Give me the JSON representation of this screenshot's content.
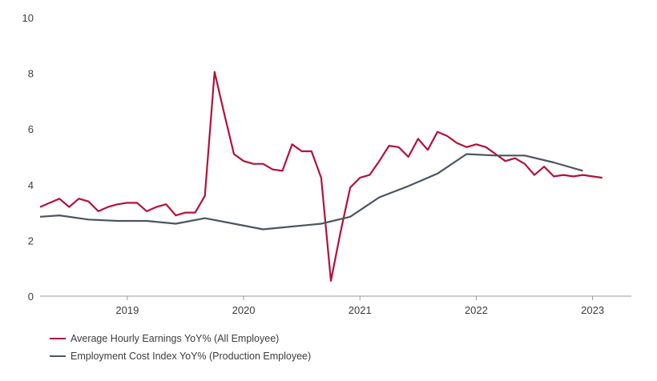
{
  "chart_data": {
    "type": "line",
    "title": "",
    "xlabel": "",
    "ylabel": "",
    "ylim": [
      0,
      10
    ],
    "yticks": [
      0,
      2,
      4,
      6,
      8,
      10
    ],
    "ytick_labels": [
      "0",
      "2",
      "4",
      "6",
      "8",
      "10"
    ],
    "xlim": [
      "2018-04",
      "2023-05"
    ],
    "xticks": [
      "2019-01",
      "2020-01",
      "2021-01",
      "2022-01",
      "2023-01"
    ],
    "xtick_labels": [
      "2019",
      "2020",
      "2021",
      "2022",
      "2023"
    ],
    "grid": false,
    "legend_position": "bottom-left",
    "series": [
      {
        "name": "Average Hourly Earnings YoY% (All Employee)",
        "color": "#b5103c",
        "points": [
          [
            "2018-04",
            3.2
          ],
          [
            "2018-05",
            3.35
          ],
          [
            "2018-06",
            3.5
          ],
          [
            "2018-07",
            3.2
          ],
          [
            "2018-08",
            3.5
          ],
          [
            "2018-09",
            3.4
          ],
          [
            "2018-10",
            3.05
          ],
          [
            "2018-11",
            3.2
          ],
          [
            "2018-12",
            3.3
          ],
          [
            "2019-01",
            3.35
          ],
          [
            "2019-02",
            3.35
          ],
          [
            "2019-03",
            3.05
          ],
          [
            "2019-04",
            3.2
          ],
          [
            "2019-05",
            3.3
          ],
          [
            "2019-06",
            2.9
          ],
          [
            "2019-07",
            3.0
          ],
          [
            "2019-08",
            3.0
          ],
          [
            "2019-09",
            3.6
          ],
          [
            "2019-10",
            8.05
          ],
          [
            "2019-11",
            6.55
          ],
          [
            "2019-12",
            5.1
          ],
          [
            "2020-01",
            4.85
          ],
          [
            "2020-02",
            4.75
          ],
          [
            "2020-03",
            4.75
          ],
          [
            "2020-04",
            4.55
          ],
          [
            "2020-05",
            4.5
          ],
          [
            "2020-06",
            5.45
          ],
          [
            "2020-07",
            5.2
          ],
          [
            "2020-08",
            5.2
          ],
          [
            "2020-09",
            4.25
          ],
          [
            "2020-10",
            0.55
          ],
          [
            "2020-11",
            2.3
          ],
          [
            "2020-12",
            3.9
          ],
          [
            "2021-01",
            4.25
          ],
          [
            "2021-02",
            4.35
          ],
          [
            "2021-03",
            4.85
          ],
          [
            "2021-04",
            5.4
          ],
          [
            "2021-05",
            5.35
          ],
          [
            "2021-06",
            5.0
          ],
          [
            "2021-07",
            5.65
          ],
          [
            "2021-08",
            5.25
          ],
          [
            "2021-09",
            5.9
          ],
          [
            "2021-10",
            5.75
          ],
          [
            "2021-11",
            5.5
          ],
          [
            "2021-12",
            5.35
          ],
          [
            "2022-01",
            5.45
          ],
          [
            "2022-02",
            5.35
          ],
          [
            "2022-03",
            5.1
          ],
          [
            "2022-04",
            4.85
          ],
          [
            "2022-05",
            4.95
          ],
          [
            "2022-06",
            4.75
          ],
          [
            "2022-07",
            4.35
          ],
          [
            "2022-08",
            4.65
          ],
          [
            "2022-09",
            4.3
          ],
          [
            "2022-10",
            4.35
          ],
          [
            "2022-11",
            4.3
          ],
          [
            "2022-12",
            4.35
          ],
          [
            "2023-01",
            4.3
          ],
          [
            "2023-02",
            4.25
          ]
        ]
      },
      {
        "name": "Employment Cost Index YoY% (Production Employee)",
        "color": "#4a5560",
        "points": [
          [
            "2018-04",
            2.85
          ],
          [
            "2018-06",
            2.9
          ],
          [
            "2018-09",
            2.75
          ],
          [
            "2018-12",
            2.7
          ],
          [
            "2019-03",
            2.7
          ],
          [
            "2019-06",
            2.6
          ],
          [
            "2019-09",
            2.8
          ],
          [
            "2019-12",
            2.6
          ],
          [
            "2020-03",
            2.4
          ],
          [
            "2020-06",
            2.5
          ],
          [
            "2020-09",
            2.6
          ],
          [
            "2020-12",
            2.85
          ],
          [
            "2021-03",
            3.55
          ],
          [
            "2021-06",
            3.95
          ],
          [
            "2021-09",
            4.4
          ],
          [
            "2021-12",
            5.1
          ],
          [
            "2022-03",
            5.05
          ],
          [
            "2022-06",
            5.05
          ],
          [
            "2022-09",
            4.8
          ],
          [
            "2022-12",
            4.5
          ]
        ]
      }
    ]
  }
}
